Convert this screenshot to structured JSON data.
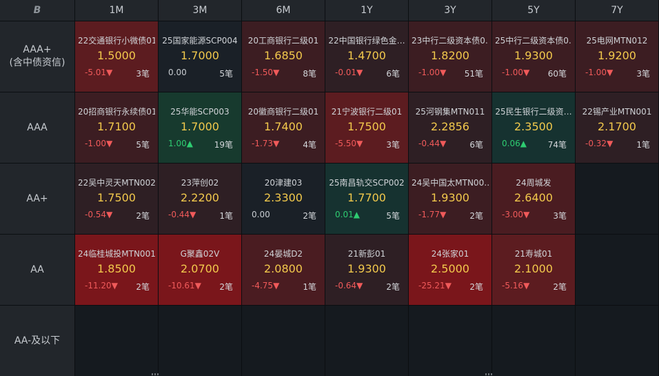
{
  "corner_logo": "B",
  "columns": [
    "1M",
    "3M",
    "6M",
    "1Y",
    "3Y",
    "5Y",
    "7Y"
  ],
  "rows": [
    {
      "label_lines": [
        "AAA+",
        "(含中债资信)"
      ],
      "cells": [
        {
          "name": "22交通银行小微债01",
          "price": "1.5000",
          "chg": "-5.01",
          "dir": "down",
          "count": "3笔",
          "bg": "#5c1c20"
        },
        {
          "name": "25国家能源SCP004",
          "price": "1.7000",
          "chg": "0.00",
          "dir": "flat",
          "count": "5笔",
          "bg": "#1a2027"
        },
        {
          "name": "20工商银行二级01",
          "price": "1.6850",
          "chg": "-1.50",
          "dir": "down",
          "count": "8笔",
          "bg": "#3c1d22"
        },
        {
          "name": "22中国银行绿色金…",
          "price": "1.4700",
          "chg": "-0.01",
          "dir": "down",
          "count": "6笔",
          "bg": "#2e1f24"
        },
        {
          "name": "23中行二级资本债0…",
          "price": "1.8200",
          "chg": "-1.00",
          "dir": "down",
          "count": "51笔",
          "bg": "#3c1d22"
        },
        {
          "name": "25中行二级资本债0…",
          "price": "1.9300",
          "chg": "-1.00",
          "dir": "down",
          "count": "60笔",
          "bg": "#3c1d22"
        },
        {
          "name": "25电网MTN012",
          "price": "1.9200",
          "chg": "-1.00",
          "dir": "down",
          "count": "3笔",
          "bg": "#3c1d22"
        }
      ]
    },
    {
      "label_lines": [
        "AAA"
      ],
      "cells": [
        {
          "name": "20招商银行永续债01",
          "price": "1.7100",
          "chg": "-1.00",
          "dir": "down",
          "count": "5笔",
          "bg": "#3c1d22"
        },
        {
          "name": "25华能SCP003",
          "price": "1.7000",
          "chg": "1.00",
          "dir": "up",
          "count": "19笔",
          "bg": "#173a2e"
        },
        {
          "name": "20徽商银行二级01",
          "price": "1.7400",
          "chg": "-1.73",
          "dir": "down",
          "count": "4笔",
          "bg": "#3c1d22"
        },
        {
          "name": "21宁波银行二级01",
          "price": "1.7500",
          "chg": "-5.50",
          "dir": "down",
          "count": "3笔",
          "bg": "#5c1c20"
        },
        {
          "name": "25河钢集MTN011",
          "price": "2.2856",
          "chg": "-0.44",
          "dir": "down",
          "count": "6笔",
          "bg": "#2e1f24"
        },
        {
          "name": "25民生银行二级资…",
          "price": "2.3500",
          "chg": "0.06",
          "dir": "up",
          "count": "74笔",
          "bg": "#163230"
        },
        {
          "name": "22锡产业MTN001",
          "price": "2.1700",
          "chg": "-0.32",
          "dir": "down",
          "count": "1笔",
          "bg": "#2e1f24"
        }
      ]
    },
    {
      "label_lines": [
        "AA+"
      ],
      "cells": [
        {
          "name": "22吴中灵天MTN002",
          "price": "1.7500",
          "chg": "-0.54",
          "dir": "down",
          "count": "2笔",
          "bg": "#2e1f24"
        },
        {
          "name": "23萍创02",
          "price": "2.2200",
          "chg": "-0.44",
          "dir": "down",
          "count": "1笔",
          "bg": "#2e1f24"
        },
        {
          "name": "20津建03",
          "price": "2.3300",
          "chg": "0.00",
          "dir": "flat",
          "count": "2笔",
          "bg": "#1a2027"
        },
        {
          "name": "25南昌轨交SCP002",
          "price": "1.7700",
          "chg": "0.01",
          "dir": "up",
          "count": "5笔",
          "bg": "#163230"
        },
        {
          "name": "24吴中国太MTN00…",
          "price": "1.9300",
          "chg": "-1.77",
          "dir": "down",
          "count": "2笔",
          "bg": "#3c1d22"
        },
        {
          "name": "24周城发",
          "price": "2.6400",
          "chg": "-3.00",
          "dir": "down",
          "count": "3笔",
          "bg": "#4a1c21"
        },
        null
      ]
    },
    {
      "label_lines": [
        "AA"
      ],
      "cells": [
        {
          "name": "24临桂城投MTN001",
          "price": "1.8500",
          "chg": "-11.20",
          "dir": "down",
          "count": "2笔",
          "bg": "#7a161b"
        },
        {
          "name": "G聚鑫02V",
          "price": "2.0700",
          "chg": "-10.61",
          "dir": "down",
          "count": "2笔",
          "bg": "#7a161b"
        },
        {
          "name": "24晏城D2",
          "price": "2.0800",
          "chg": "-4.75",
          "dir": "down",
          "count": "1笔",
          "bg": "#4a1c21"
        },
        {
          "name": "21新彭01",
          "price": "1.9300",
          "chg": "-0.64",
          "dir": "down",
          "count": "2笔",
          "bg": "#2e1f24"
        },
        {
          "name": "24张家01",
          "price": "2.5000",
          "chg": "-25.21",
          "dir": "down",
          "count": "2笔",
          "bg": "#7a161b"
        },
        {
          "name": "21寿城01",
          "price": "2.1000",
          "chg": "-5.16",
          "dir": "down",
          "count": "2笔",
          "bg": "#5c1c20"
        },
        null
      ]
    },
    {
      "label_lines": [
        "AA-及以下"
      ],
      "cells": [
        null,
        null,
        null,
        null,
        null,
        null,
        null
      ]
    }
  ],
  "arrows": {
    "down": "▼",
    "up": "▲"
  },
  "colors": {
    "price": "#f2c94c",
    "down": "#f05a5a",
    "up": "#2ecc71",
    "header_bg": "#22262b"
  }
}
